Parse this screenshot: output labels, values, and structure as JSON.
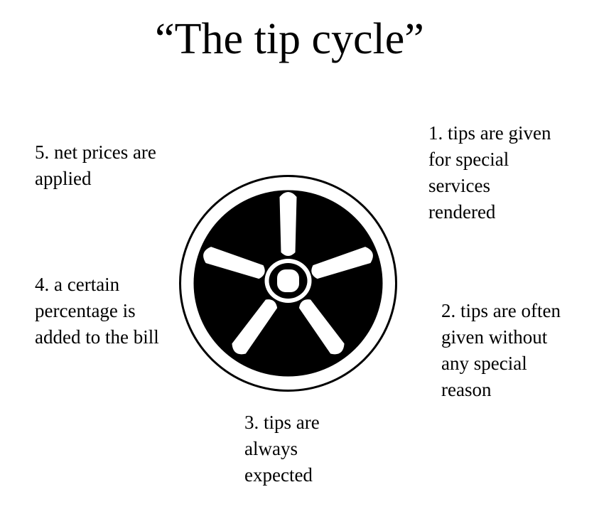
{
  "title": "“The tip cycle”",
  "wheel": {
    "icon": "wheel-icon",
    "fill_color": "#000000",
    "spoke_color": "#ffffff"
  },
  "steps": [
    {
      "text": "1. tips are given\nfor special\nservices\nrendered"
    },
    {
      "text": "2. tips are often\ngiven without\nany special\nreason"
    },
    {
      "text": "3. tips are\nalways\nexpected"
    },
    {
      "text": "4. a certain\npercentage is\nadded to the bill"
    },
    {
      "text": "5. net prices are\napplied"
    }
  ]
}
